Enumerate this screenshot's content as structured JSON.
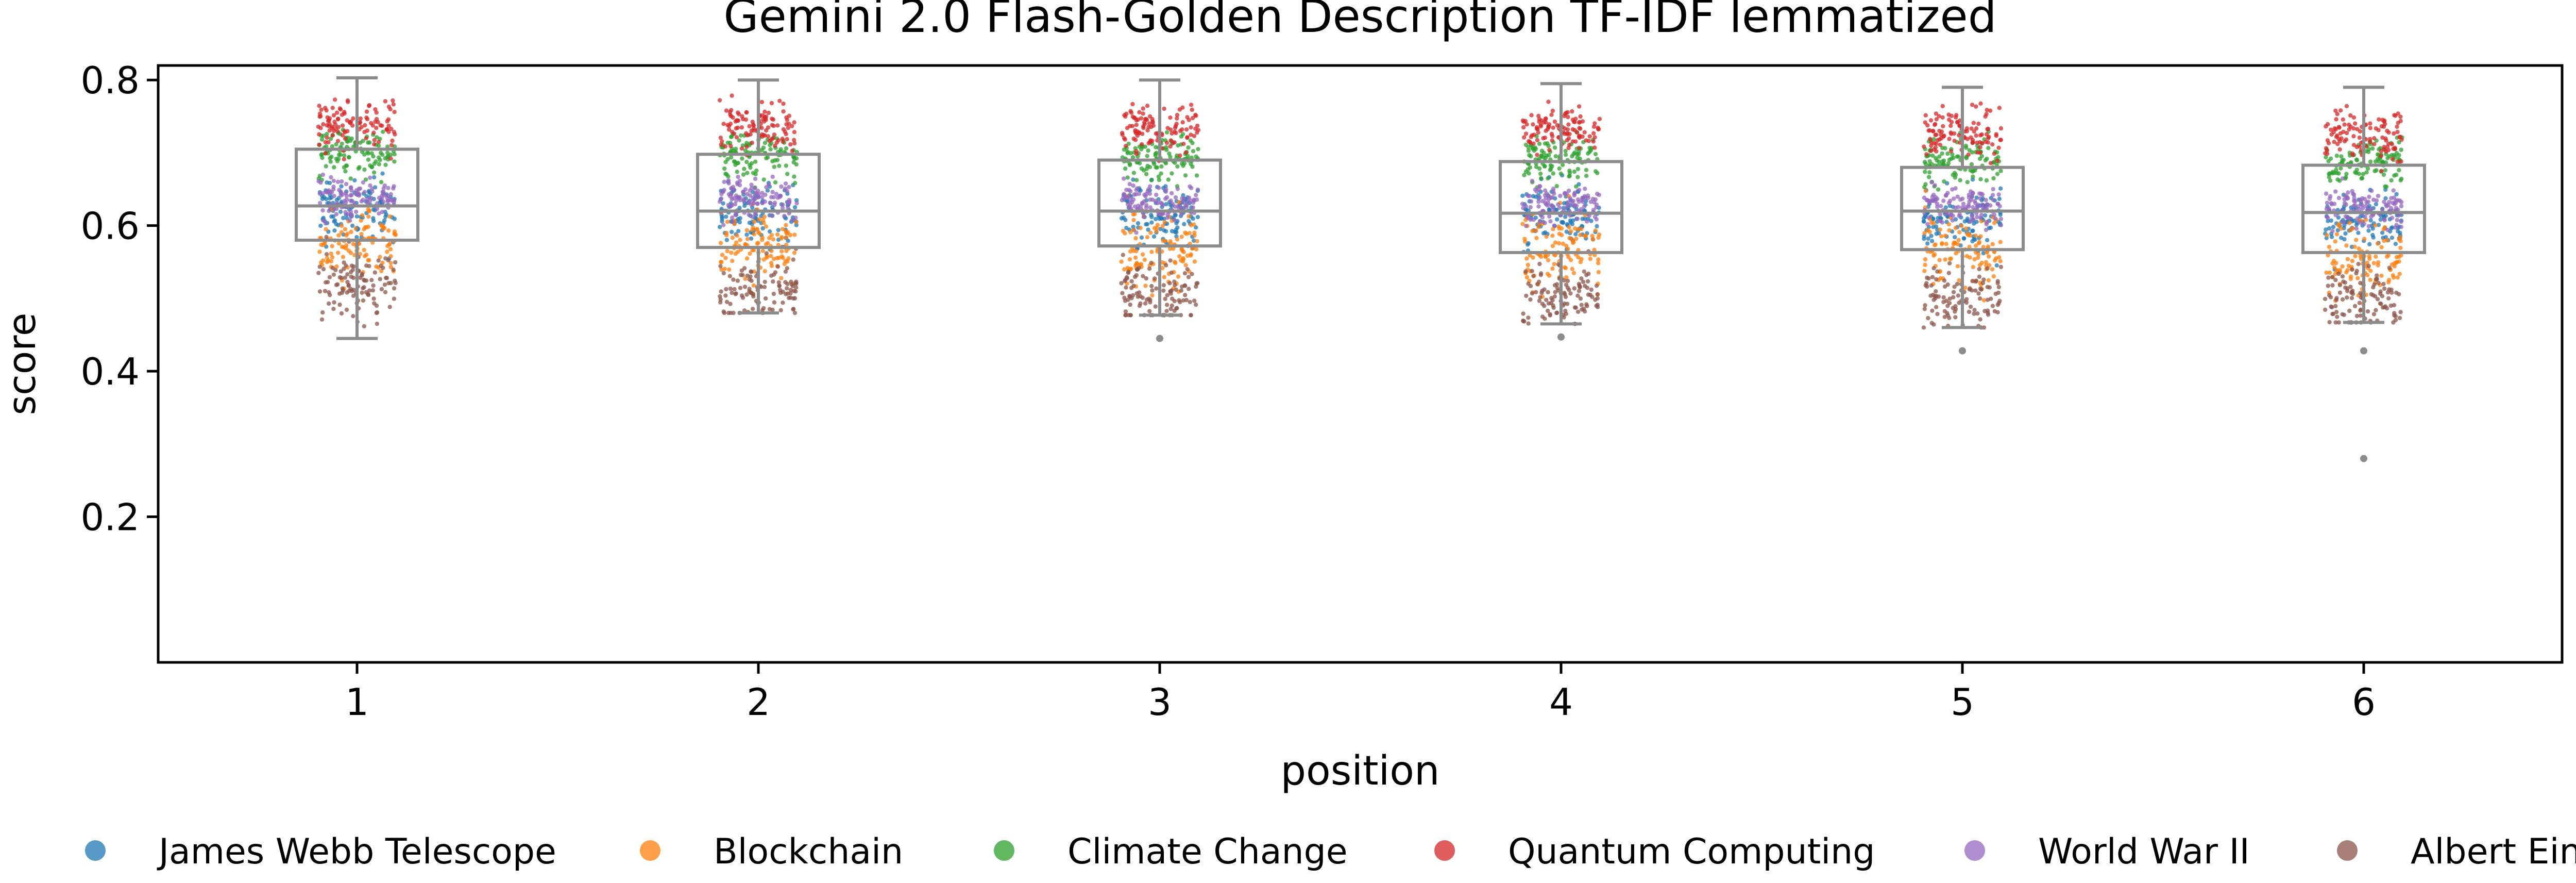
{
  "chart_data": {
    "type": "box+strip",
    "title": "Gemini 2.0 Flash-Golden Description TF-IDF lemmatized",
    "xlabel": "position",
    "ylabel": "score",
    "categories": [
      "1",
      "2",
      "3",
      "4",
      "5",
      "6"
    ],
    "ylim": [
      0.0,
      0.82
    ],
    "yticks": [
      "0.2",
      "0.4",
      "0.6",
      "0.8"
    ],
    "grid": false,
    "legend_placement": "bottom",
    "boxes": [
      {
        "position": "1",
        "q1": 0.58,
        "median": 0.627,
        "q3": 0.705,
        "whisker_low": 0.445,
        "whisker_high": 0.803,
        "outliers": []
      },
      {
        "position": "2",
        "q1": 0.57,
        "median": 0.62,
        "q3": 0.698,
        "whisker_low": 0.48,
        "whisker_high": 0.8,
        "outliers": []
      },
      {
        "position": "3",
        "q1": 0.572,
        "median": 0.62,
        "q3": 0.69,
        "whisker_low": 0.477,
        "whisker_high": 0.8,
        "outliers": [
          0.445
        ]
      },
      {
        "position": "4",
        "q1": 0.563,
        "median": 0.617,
        "q3": 0.688,
        "whisker_low": 0.465,
        "whisker_high": 0.795,
        "outliers": [
          0.447
        ]
      },
      {
        "position": "5",
        "q1": 0.567,
        "median": 0.62,
        "q3": 0.68,
        "whisker_low": 0.46,
        "whisker_high": 0.79,
        "outliers": [
          0.428
        ]
      },
      {
        "position": "6",
        "q1": 0.563,
        "median": 0.618,
        "q3": 0.683,
        "whisker_low": 0.467,
        "whisker_high": 0.79,
        "outliers": [
          0.428,
          0.28
        ]
      }
    ],
    "series": [
      {
        "name": "James Webb Telescope",
        "color": "#1f77b4",
        "center": 0.62,
        "spread": 0.038
      },
      {
        "name": "Blockchain",
        "color": "#ff7f0e",
        "center": 0.575,
        "spread": 0.045
      },
      {
        "name": "Climate Change",
        "color": "#2ca02c",
        "center": 0.7,
        "spread": 0.03
      },
      {
        "name": "Quantum Computing",
        "color": "#d62728",
        "center": 0.74,
        "spread": 0.03
      },
      {
        "name": "World War II",
        "color": "#9467bd",
        "center": 0.64,
        "spread": 0.025
      },
      {
        "name": "Albert Einstein",
        "color": "#8c564b",
        "center": 0.515,
        "spread": 0.04
      }
    ]
  }
}
